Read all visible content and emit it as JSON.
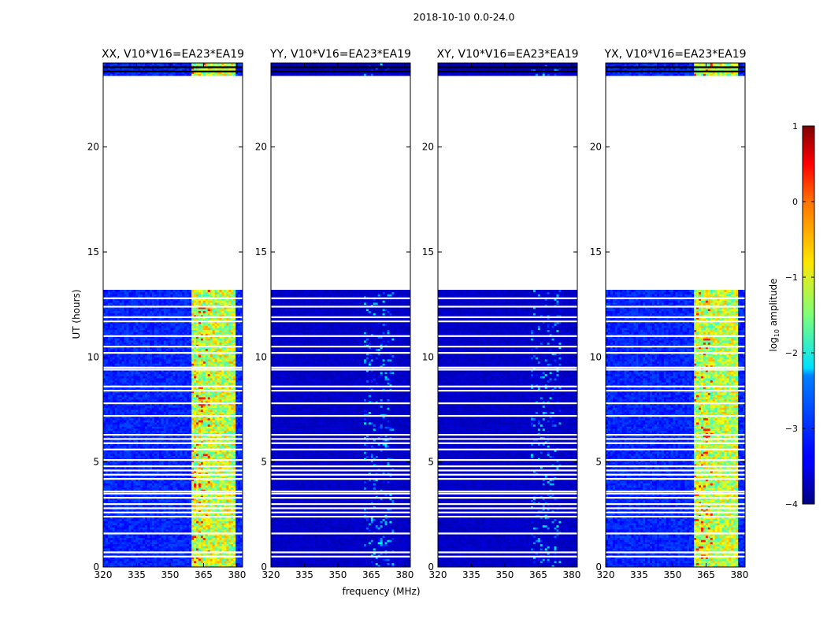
{
  "chart_data": {
    "type": "heatmap",
    "suptitle": "2018-10-10 0.0-24.0",
    "xlabel": "frequency (MHz)",
    "ylabel": "UT (hours)",
    "xlim": [
      320,
      382.5
    ],
    "ylim": [
      0,
      24
    ],
    "xticks": [
      320,
      335,
      350,
      365,
      380
    ],
    "yticks": [
      0,
      5,
      10,
      15,
      20
    ],
    "panels": [
      {
        "title": "XX, V10*V16=EA23*EA19",
        "strength": 1.0,
        "show_ylabel": true
      },
      {
        "title": "YY, V10*V16=EA23*EA19",
        "strength": 0.25,
        "show_ylabel": false
      },
      {
        "title": "XY, V10*V16=EA23*EA19",
        "strength": 0.22,
        "show_ylabel": false
      },
      {
        "title": "YX, V10*V16=EA23*EA19",
        "strength": 0.95,
        "show_ylabel": false
      }
    ],
    "data_gap_hours": [
      13.1,
      23.4
    ],
    "flagged_rows_hours": [
      0.5,
      0.7,
      1.6,
      2.4,
      2.6,
      2.8,
      3.0,
      3.3,
      3.5,
      3.6,
      4.2,
      4.4,
      4.6,
      4.8,
      5.1,
      5.6,
      5.9,
      6.1,
      6.3,
      7.2,
      7.8,
      8.4,
      8.6,
      9.4,
      9.5,
      10.2,
      10.5,
      11.0,
      11.7,
      11.9,
      12.4,
      12.8,
      23.6,
      23.8
    ],
    "rfi_band_mhz": [
      360,
      379
    ],
    "colorbar": {
      "label": "log",
      "label_sub": "10",
      "label_rest": " amplitude",
      "range": [
        -4,
        1
      ],
      "ticks": [
        "1",
        "0",
        "−1",
        "−2",
        "−3",
        "−4"
      ],
      "colormap": "jet"
    }
  }
}
